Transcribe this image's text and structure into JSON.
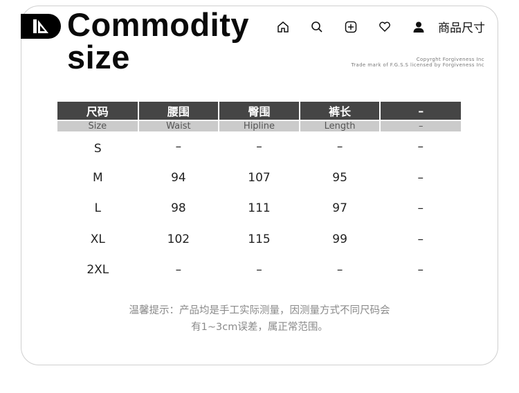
{
  "header": {
    "title_line1": "Commodity",
    "title_line2": "size",
    "nav_label": "商品尺寸",
    "copyright_line1": "Copyrght Forgiveness Inc",
    "copyright_line2": "Trade mark of F.G.S.S licensed by Forgiveness Inc"
  },
  "icons": [
    "ruler-triangle-icon",
    "home-icon",
    "search-icon",
    "add-square-icon",
    "heart-icon",
    "user-icon"
  ],
  "table": {
    "headers_cn": [
      "尺码",
      "腰围",
      "臀围",
      "裤长",
      "–"
    ],
    "headers_en": [
      "Size",
      "Waist",
      "Hipline",
      "Length",
      "–"
    ],
    "rows": [
      [
        "S",
        "–",
        "–",
        "–",
        "–"
      ],
      [
        "M",
        "94",
        "107",
        "95",
        "–"
      ],
      [
        "L",
        "98",
        "111",
        "97",
        "–"
      ],
      [
        "XL",
        "102",
        "115",
        "99",
        "–"
      ],
      [
        "2XL",
        "–",
        "–",
        "–",
        "–"
      ]
    ]
  },
  "note": {
    "line1": "温馨提示：产品均是手工实际测量，因测量方式不同尺码会",
    "line2": "有1~3cm误差，属正常范围。"
  },
  "colors": {
    "header_bg": "#454545",
    "subheader_bg": "#cbcbcb"
  }
}
